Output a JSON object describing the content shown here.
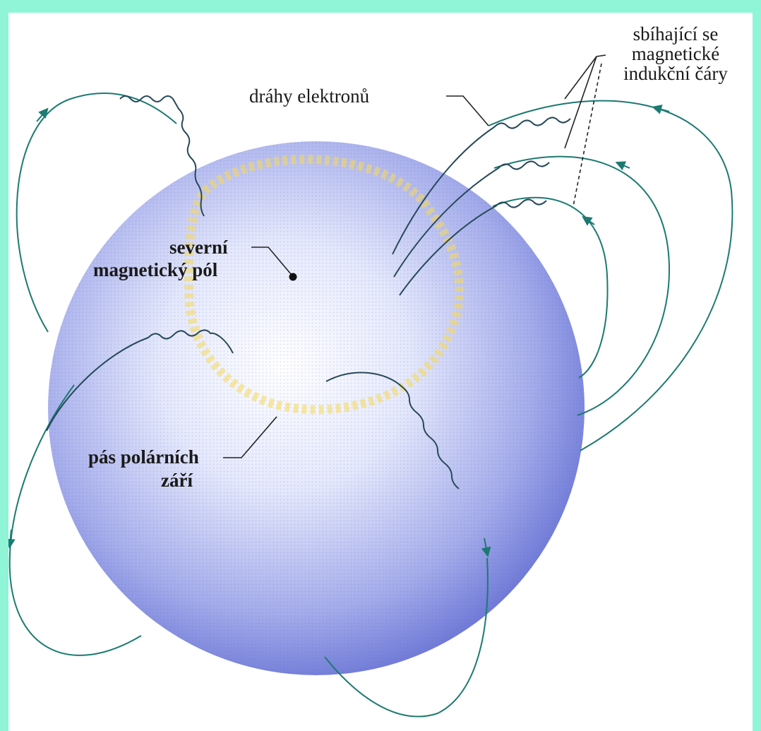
{
  "labels": {
    "electron_paths": "dráhy elektronů",
    "converging_line1": "sbíhající se",
    "converging_line2": "magnetické",
    "converging_line3": "indukční čáry",
    "north_pole_line1": "severní",
    "north_pole_line2": "magnetický pól",
    "aurora_belt_line1": "pás polárních",
    "aurora_belt_line2": "září"
  },
  "colors": {
    "background": "#8ff5d6",
    "sphere": "#7f89dc",
    "aurora_ring": "#f5d85a",
    "field_line": "#1c7a72",
    "electron_path": "#27495a"
  }
}
